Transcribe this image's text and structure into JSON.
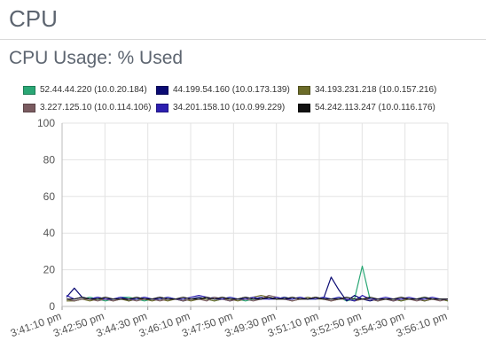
{
  "header": {
    "title": "CPU"
  },
  "chart_data": {
    "type": "line",
    "title": "CPU Usage: % Used",
    "xlabel": "",
    "ylabel": "",
    "ylim": [
      0,
      100
    ],
    "yticks": [
      0,
      20,
      40,
      60,
      80,
      100
    ],
    "grid": true,
    "legend_position": "top",
    "xtick_labels": [
      "3:41:10 pm",
      "3:42:50 pm",
      "3:44:30 pm",
      "3:46:10 pm",
      "3:47:50 pm",
      "3:49:30 pm",
      "3:51:10 pm",
      "3:52:50 pm",
      "3:54:30 pm",
      "3:56:10 pm"
    ],
    "series": [
      {
        "name": "52.44.44.220 (10.0.20.184)",
        "color": "#2aa775",
        "values": [
          4,
          3,
          4,
          5,
          4,
          3,
          4,
          5,
          5,
          4,
          3,
          4,
          4,
          5,
          4,
          3,
          4,
          5,
          4,
          3,
          4,
          5,
          4,
          3,
          4,
          4,
          5,
          4,
          5,
          4,
          5,
          4,
          4,
          5,
          4,
          5,
          3,
          4,
          22,
          4,
          3,
          4,
          4,
          3,
          4,
          4,
          5,
          4,
          4,
          3
        ]
      },
      {
        "name": "44.199.54.160 (10.0.173.139)",
        "color": "#0b0b73",
        "values": [
          5,
          10,
          5,
          4,
          5,
          4,
          4,
          5,
          3,
          4,
          5,
          4,
          5,
          4,
          4,
          3,
          4,
          5,
          4,
          5,
          4,
          3,
          4,
          5,
          4,
          5,
          4,
          4,
          5,
          4,
          5,
          4,
          5,
          4,
          16,
          9,
          3,
          6,
          4,
          3,
          4,
          4,
          3,
          4,
          4,
          4,
          3,
          4,
          4,
          4
        ]
      },
      {
        "name": "34.193.231.218 (10.0.157.216)",
        "color": "#6b6b28",
        "values": [
          3,
          3,
          4,
          3,
          4,
          4,
          3,
          4,
          3,
          4,
          4,
          3,
          4,
          3,
          4,
          4,
          3,
          4,
          4,
          3,
          4,
          4,
          3,
          4,
          5,
          6,
          5,
          4,
          4,
          3,
          4,
          5,
          4,
          4,
          3,
          4,
          4,
          3,
          4,
          4,
          3,
          4,
          4,
          3,
          4,
          4,
          3,
          4,
          4,
          3
        ]
      },
      {
        "name": "3.227.125.10 (10.0.114.106)",
        "color": "#7a5b60",
        "values": [
          4,
          3,
          4,
          4,
          3,
          4,
          3,
          4,
          4,
          3,
          4,
          4,
          3,
          4,
          4,
          3,
          4,
          4,
          3,
          5,
          4,
          3,
          4,
          4,
          3,
          4,
          6,
          5,
          4,
          3,
          4,
          4,
          5,
          4,
          3,
          4,
          4,
          3,
          4,
          4,
          3,
          4,
          3,
          4,
          4,
          3,
          4,
          4,
          3,
          4
        ]
      },
      {
        "name": "34.201.158.10 (10.0.99.229)",
        "color": "#2d1fb0",
        "values": [
          6,
          4,
          5,
          4,
          5,
          4,
          4,
          5,
          4,
          4,
          5,
          4,
          4,
          5,
          4,
          4,
          5,
          6,
          5,
          4,
          4,
          5,
          4,
          4,
          5,
          4,
          4,
          5,
          4,
          4,
          5,
          4,
          4,
          5,
          4,
          5,
          4,
          3,
          6,
          4,
          4,
          5,
          4,
          4,
          5,
          4,
          4,
          5,
          4,
          4
        ]
      },
      {
        "name": "54.242.113.247 (10.0.116.176)",
        "color": "#111111",
        "values": [
          4,
          4,
          5,
          4,
          4,
          5,
          4,
          4,
          4,
          5,
          4,
          4,
          5,
          4,
          4,
          5,
          4,
          4,
          5,
          4,
          5,
          4,
          4,
          5,
          4,
          4,
          5,
          4,
          4,
          5,
          4,
          4,
          5,
          4,
          4,
          4,
          5,
          4,
          4,
          5,
          4,
          4,
          4,
          5,
          4,
          4,
          5,
          4,
          4,
          4
        ]
      }
    ]
  }
}
